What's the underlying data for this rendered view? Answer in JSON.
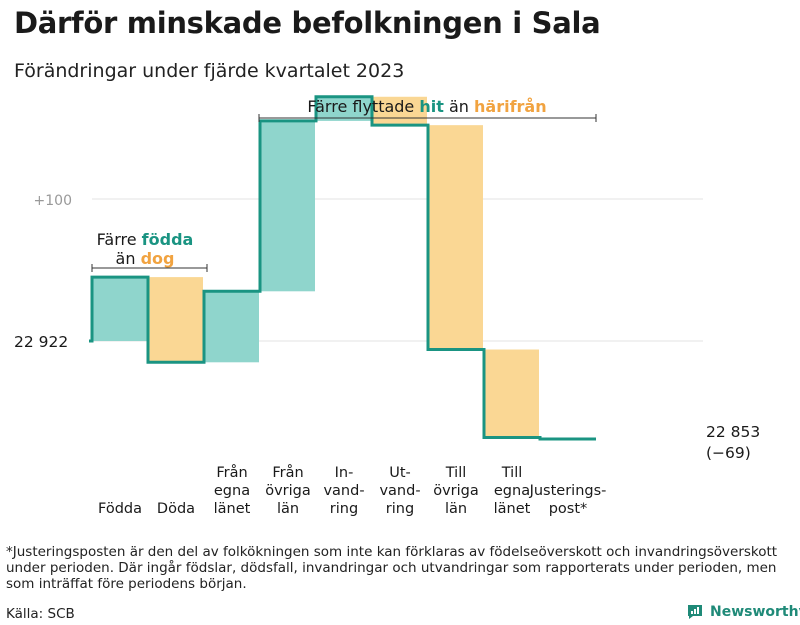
{
  "header": {
    "title": "Därför minskade befolkningen i Sala",
    "subtitle": "Förändringar under fjärde kvartalet 2023"
  },
  "colors": {
    "increase": "#8fd5cc",
    "decrease": "#fad794",
    "line": "#1a9482",
    "grid": "#e3e3e3",
    "teal_text": "#1a9482",
    "orange_text": "#f1a340"
  },
  "annotations": {
    "births": {
      "prefix": "Färre",
      "highlight": "födda",
      "suffix": "",
      "line2_prefix": "än",
      "line2_highlight": "dog"
    },
    "moves": {
      "prefix": "Färre flyttade",
      "highlight1": "hit",
      "mid": "än",
      "highlight2": "härifrån"
    }
  },
  "chart_data": {
    "type": "waterfall",
    "title": "Därför minskade befolkningen i Sala",
    "subtitle": "Förändringar under fjärde kvartalet 2023",
    "start_label": "22  922",
    "start_value": 22922,
    "end_label": [
      "22 853",
      "(−69)"
    ],
    "end_value": 22853,
    "total_change": -69,
    "y_tick_labels": [
      "+100"
    ],
    "y_ticks_relative": [
      0,
      100
    ],
    "categories": [
      {
        "label": [
          "Födda"
        ],
        "change": 45
      },
      {
        "label": [
          "Döda"
        ],
        "change": -60
      },
      {
        "label": [
          "Från",
          "egna",
          "länet"
        ],
        "change": 50
      },
      {
        "label": [
          "Från",
          "övriga",
          "län"
        ],
        "change": 120
      },
      {
        "label": [
          "In-",
          "vand-",
          "ring"
        ],
        "change": 17
      },
      {
        "label": [
          "Ut-",
          "vand-",
          "ring"
        ],
        "change": -20
      },
      {
        "label": [
          "Till",
          "övriga",
          "län"
        ],
        "change": -158
      },
      {
        "label": [
          "Till",
          "egna",
          "länet"
        ],
        "change": -62
      },
      {
        "label": [
          "Justerings-",
          "post*"
        ],
        "change": -1
      }
    ],
    "grid": true
  },
  "footer": {
    "footnote": "*Justeringsposten är den del av folkökningen som inte kan förklaras av födelseöverskott och invandringsöverskott under perioden. Där ingår födslar, dödsfall, invandringar och utvandringar som rapporterats under perioden, men som inträffat före periodens början.",
    "source": "Källa: SCB",
    "logo_text": "Newsworthy"
  }
}
